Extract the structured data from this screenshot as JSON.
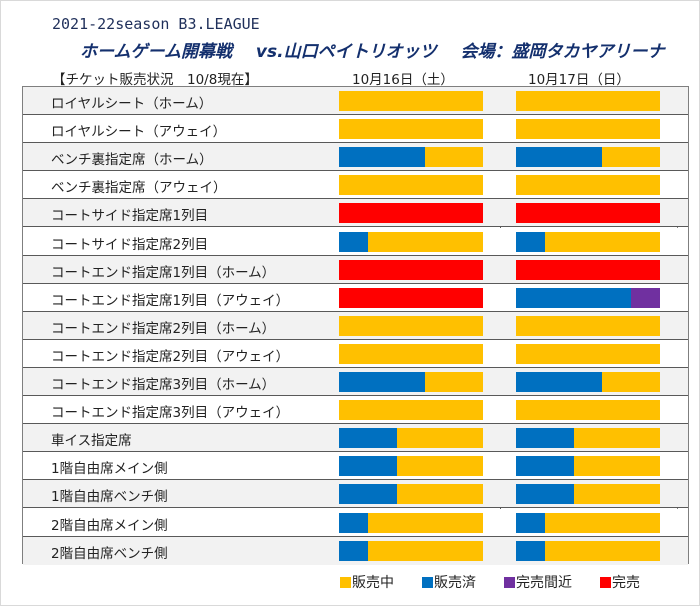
{
  "header": {
    "season": "2021-22season B3.LEAGUE",
    "headline_parts": [
      "ホームゲーム開幕戦",
      "vs.山口ペイトリオッツ",
      "会場：盛岡タカヤアリーナ"
    ],
    "status": "【チケット販売状況　10/8現在】"
  },
  "colors": {
    "on_sale": "#ffc000",
    "sold": "#0070c0",
    "near_sellout": "#7030a0",
    "sold_out": "#ff0000"
  },
  "chart_data": {
    "type": "bar",
    "orientation": "horizontal-stacked",
    "title": "チケット販売状況 10/8現在",
    "columns": [
      "10月16日（土）",
      "10月17日（日）"
    ],
    "legend": [
      {
        "key": "on_sale",
        "label": "販売中"
      },
      {
        "key": "sold",
        "label": "販売済"
      },
      {
        "key": "near_sellout",
        "label": "完売間近"
      },
      {
        "key": "sold_out",
        "label": "完売"
      }
    ],
    "legend_position": "bottom-right",
    "units": "percent of seats",
    "categories": [
      "ロイヤルシート（ホーム）",
      "ロイヤルシート（アウェイ）",
      "ベンチ裏指定席（ホーム）",
      "ベンチ裏指定席（アウェイ）",
      "コートサイド指定席1列目",
      "コートサイド指定席2列目",
      "コートエンド指定席1列目（ホーム）",
      "コートエンド指定席1列目（アウェイ）",
      "コートエンド指定席2列目（ホーム）",
      "コートエンド指定席2列目（アウェイ）",
      "コートエンド指定席3列目（ホーム）",
      "コートエンド指定席3列目（アウェイ）",
      "車イス指定席",
      "1階自由席メイン側",
      "1階自由席ベンチ側",
      "2階自由席メイン側",
      "2階自由席ベンチ側"
    ],
    "series": [
      {
        "name": "10月16日（土）",
        "values": [
          {
            "sold": 0,
            "near_sellout": 0,
            "sold_out": 0,
            "on_sale": 100
          },
          {
            "sold": 0,
            "near_sellout": 0,
            "sold_out": 0,
            "on_sale": 100
          },
          {
            "sold": 60,
            "near_sellout": 0,
            "sold_out": 0,
            "on_sale": 40
          },
          {
            "sold": 0,
            "near_sellout": 0,
            "sold_out": 0,
            "on_sale": 100
          },
          {
            "sold": 0,
            "near_sellout": 0,
            "sold_out": 100,
            "on_sale": 0
          },
          {
            "sold": 20,
            "near_sellout": 0,
            "sold_out": 0,
            "on_sale": 80
          },
          {
            "sold": 0,
            "near_sellout": 0,
            "sold_out": 100,
            "on_sale": 0
          },
          {
            "sold": 0,
            "near_sellout": 0,
            "sold_out": 100,
            "on_sale": 0
          },
          {
            "sold": 0,
            "near_sellout": 0,
            "sold_out": 0,
            "on_sale": 100
          },
          {
            "sold": 0,
            "near_sellout": 0,
            "sold_out": 0,
            "on_sale": 100
          },
          {
            "sold": 60,
            "near_sellout": 0,
            "sold_out": 0,
            "on_sale": 40
          },
          {
            "sold": 0,
            "near_sellout": 0,
            "sold_out": 0,
            "on_sale": 100
          },
          {
            "sold": 40,
            "near_sellout": 0,
            "sold_out": 0,
            "on_sale": 60
          },
          {
            "sold": 40,
            "near_sellout": 0,
            "sold_out": 0,
            "on_sale": 60
          },
          {
            "sold": 40,
            "near_sellout": 0,
            "sold_out": 0,
            "on_sale": 60
          },
          {
            "sold": 20,
            "near_sellout": 0,
            "sold_out": 0,
            "on_sale": 80
          },
          {
            "sold": 20,
            "near_sellout": 0,
            "sold_out": 0,
            "on_sale": 80
          }
        ]
      },
      {
        "name": "10月17日（日）",
        "values": [
          {
            "sold": 0,
            "near_sellout": 0,
            "sold_out": 0,
            "on_sale": 100
          },
          {
            "sold": 0,
            "near_sellout": 0,
            "sold_out": 0,
            "on_sale": 100
          },
          {
            "sold": 60,
            "near_sellout": 0,
            "sold_out": 0,
            "on_sale": 40
          },
          {
            "sold": 0,
            "near_sellout": 0,
            "sold_out": 0,
            "on_sale": 100
          },
          {
            "sold": 0,
            "near_sellout": 0,
            "sold_out": 100,
            "on_sale": 0
          },
          {
            "sold": 20,
            "near_sellout": 0,
            "sold_out": 0,
            "on_sale": 80
          },
          {
            "sold": 0,
            "near_sellout": 0,
            "sold_out": 100,
            "on_sale": 0
          },
          {
            "sold": 80,
            "near_sellout": 20,
            "sold_out": 0,
            "on_sale": 0
          },
          {
            "sold": 0,
            "near_sellout": 0,
            "sold_out": 0,
            "on_sale": 100
          },
          {
            "sold": 0,
            "near_sellout": 0,
            "sold_out": 0,
            "on_sale": 100
          },
          {
            "sold": 60,
            "near_sellout": 0,
            "sold_out": 0,
            "on_sale": 40
          },
          {
            "sold": 0,
            "near_sellout": 0,
            "sold_out": 0,
            "on_sale": 100
          },
          {
            "sold": 40,
            "near_sellout": 0,
            "sold_out": 0,
            "on_sale": 60
          },
          {
            "sold": 40,
            "near_sellout": 0,
            "sold_out": 0,
            "on_sale": 60
          },
          {
            "sold": 40,
            "near_sellout": 0,
            "sold_out": 0,
            "on_sale": 60
          },
          {
            "sold": 20,
            "near_sellout": 0,
            "sold_out": 0,
            "on_sale": 80
          },
          {
            "sold": 20,
            "near_sellout": 0,
            "sold_out": 0,
            "on_sale": 80
          }
        ]
      }
    ]
  }
}
